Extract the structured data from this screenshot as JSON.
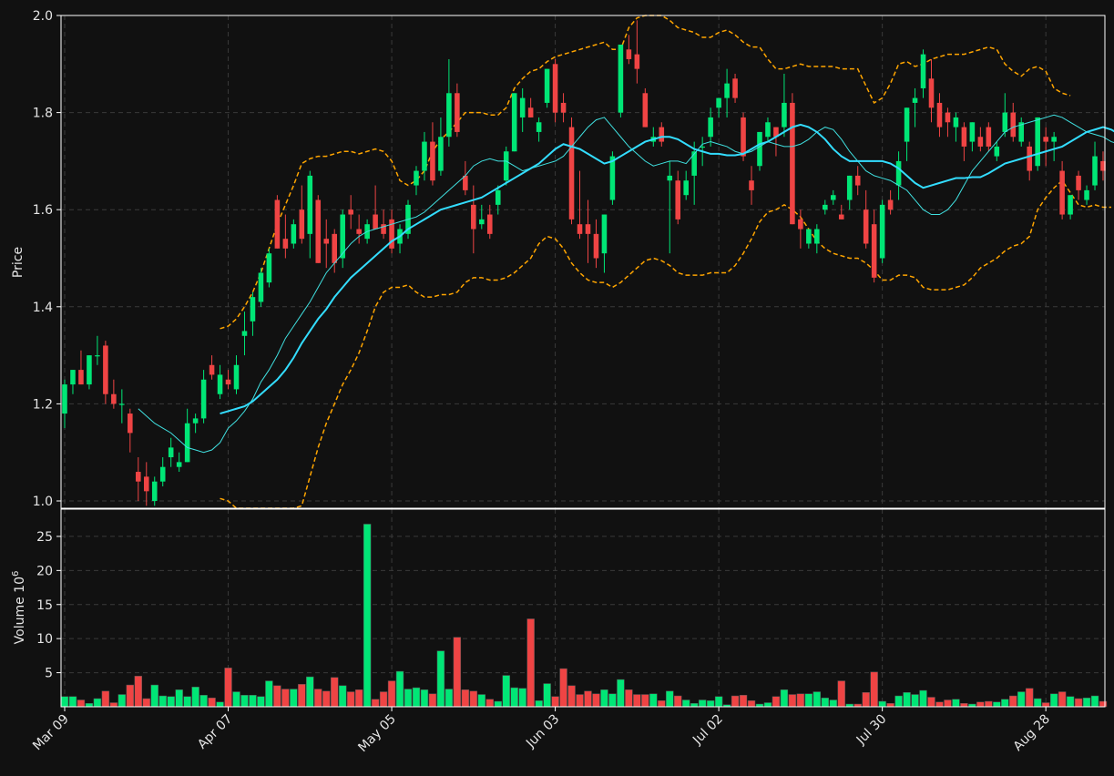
{
  "chart_data": {
    "type": "candlestick",
    "colors": {
      "background": "#111111",
      "up": "#00e676",
      "down": "#ef4444",
      "ma_short": "#40e0e0",
      "ma_long": "#33ddff",
      "bollinger": "#ffa500",
      "grid": "#3a3a3a",
      "axis": "#ffffff"
    },
    "price_panel": {
      "ylabel": "Price",
      "ylim": [
        0.985,
        2.0
      ],
      "yticks": [
        "1.0",
        "1.2",
        "1.4",
        "1.6",
        "1.8",
        "2.0"
      ],
      "grid": true
    },
    "volume_panel": {
      "ylabel": "Volume",
      "ylabel_exponent": "10",
      "ylabel_power": "6",
      "ylim": [
        0,
        29
      ],
      "yticks": [
        "5",
        "10",
        "15",
        "20",
        "25"
      ],
      "grid": true
    },
    "x_tick_labels": [
      {
        "label": "Mar 09",
        "index": 0
      },
      {
        "label": "Apr 07",
        "index": 20
      },
      {
        "label": "May 05",
        "index": 40
      },
      {
        "label": "Jun 03",
        "index": 60
      },
      {
        "label": "Jul 02",
        "index": 80
      },
      {
        "label": "Jul 30",
        "index": 100
      },
      {
        "label": "Aug 28",
        "index": 120
      }
    ],
    "ohlc": [
      [
        1.18,
        1.25,
        1.15,
        1.24
      ],
      [
        1.24,
        1.27,
        1.22,
        1.27
      ],
      [
        1.27,
        1.31,
        1.24,
        1.24
      ],
      [
        1.24,
        1.3,
        1.23,
        1.3
      ],
      [
        1.3,
        1.34,
        1.28,
        1.3
      ],
      [
        1.32,
        1.33,
        1.2,
        1.22
      ],
      [
        1.22,
        1.25,
        1.19,
        1.2
      ],
      [
        1.2,
        1.23,
        1.16,
        1.2
      ],
      [
        1.18,
        1.19,
        1.1,
        1.14
      ],
      [
        1.06,
        1.09,
        1.0,
        1.04
      ],
      [
        1.05,
        1.08,
        0.99,
        1.02
      ],
      [
        1.0,
        1.05,
        0.99,
        1.04
      ],
      [
        1.04,
        1.09,
        1.03,
        1.07
      ],
      [
        1.09,
        1.13,
        1.07,
        1.11
      ],
      [
        1.07,
        1.1,
        1.06,
        1.08
      ],
      [
        1.08,
        1.19,
        1.08,
        1.16
      ],
      [
        1.16,
        1.18,
        1.14,
        1.17
      ],
      [
        1.17,
        1.27,
        1.16,
        1.25
      ],
      [
        1.28,
        1.3,
        1.25,
        1.26
      ],
      [
        1.22,
        1.28,
        1.21,
        1.26
      ],
      [
        1.25,
        1.27,
        1.23,
        1.24
      ],
      [
        1.23,
        1.3,
        1.22,
        1.28
      ],
      [
        1.34,
        1.39,
        1.3,
        1.35
      ],
      [
        1.37,
        1.43,
        1.34,
        1.42
      ],
      [
        1.41,
        1.48,
        1.4,
        1.47
      ],
      [
        1.45,
        1.52,
        1.44,
        1.51
      ],
      [
        1.62,
        1.63,
        1.52,
        1.52
      ],
      [
        1.54,
        1.59,
        1.5,
        1.52
      ],
      [
        1.53,
        1.58,
        1.52,
        1.57
      ],
      [
        1.6,
        1.65,
        1.53,
        1.54
      ],
      [
        1.55,
        1.68,
        1.5,
        1.67
      ],
      [
        1.62,
        1.63,
        1.49,
        1.49
      ],
      [
        1.54,
        1.58,
        1.48,
        1.53
      ],
      [
        1.55,
        1.56,
        1.47,
        1.49
      ],
      [
        1.5,
        1.6,
        1.48,
        1.59
      ],
      [
        1.6,
        1.63,
        1.56,
        1.59
      ],
      [
        1.56,
        1.59,
        1.53,
        1.55
      ],
      [
        1.54,
        1.58,
        1.53,
        1.57
      ],
      [
        1.59,
        1.65,
        1.56,
        1.56
      ],
      [
        1.57,
        1.6,
        1.54,
        1.55
      ],
      [
        1.58,
        1.6,
        1.51,
        1.52
      ],
      [
        1.53,
        1.57,
        1.51,
        1.56
      ],
      [
        1.55,
        1.62,
        1.54,
        1.61
      ],
      [
        1.65,
        1.69,
        1.63,
        1.68
      ],
      [
        1.68,
        1.76,
        1.66,
        1.74
      ],
      [
        1.74,
        1.78,
        1.65,
        1.66
      ],
      [
        1.68,
        1.79,
        1.67,
        1.75
      ],
      [
        1.75,
        1.91,
        1.73,
        1.84
      ],
      [
        1.84,
        1.86,
        1.75,
        1.76
      ],
      [
        1.67,
        1.7,
        1.63,
        1.64
      ],
      [
        1.61,
        1.65,
        1.51,
        1.56
      ],
      [
        1.57,
        1.61,
        1.56,
        1.58
      ],
      [
        1.59,
        1.61,
        1.54,
        1.55
      ],
      [
        1.61,
        1.65,
        1.59,
        1.64
      ],
      [
        1.66,
        1.73,
        1.65,
        1.72
      ],
      [
        1.72,
        1.84,
        1.72,
        1.84
      ],
      [
        1.79,
        1.85,
        1.76,
        1.83
      ],
      [
        1.81,
        1.83,
        1.79,
        1.79
      ],
      [
        1.76,
        1.79,
        1.74,
        1.78
      ],
      [
        1.82,
        1.89,
        1.81,
        1.89
      ],
      [
        1.9,
        1.91,
        1.78,
        1.8
      ],
      [
        1.82,
        1.84,
        1.78,
        1.8
      ],
      [
        1.77,
        1.79,
        1.57,
        1.58
      ],
      [
        1.57,
        1.68,
        1.54,
        1.55
      ],
      [
        1.57,
        1.62,
        1.49,
        1.55
      ],
      [
        1.55,
        1.58,
        1.48,
        1.5
      ],
      [
        1.51,
        1.59,
        1.47,
        1.59
      ],
      [
        1.62,
        1.72,
        1.61,
        1.71
      ],
      [
        1.8,
        1.94,
        1.79,
        1.94
      ],
      [
        1.93,
        1.96,
        1.9,
        1.91
      ],
      [
        1.92,
        1.99,
        1.86,
        1.89
      ],
      [
        1.84,
        1.85,
        1.77,
        1.77
      ],
      [
        1.74,
        1.77,
        1.73,
        1.75
      ],
      [
        1.77,
        1.78,
        1.73,
        1.74
      ],
      [
        1.66,
        1.7,
        1.51,
        1.67
      ],
      [
        1.66,
        1.68,
        1.57,
        1.58
      ],
      [
        1.63,
        1.68,
        1.62,
        1.66
      ],
      [
        1.67,
        1.74,
        1.61,
        1.72
      ],
      [
        1.73,
        1.75,
        1.69,
        1.73
      ],
      [
        1.75,
        1.81,
        1.73,
        1.79
      ],
      [
        1.81,
        1.83,
        1.79,
        1.83
      ],
      [
        1.83,
        1.89,
        1.79,
        1.86
      ],
      [
        1.87,
        1.88,
        1.82,
        1.83
      ],
      [
        1.79,
        1.8,
        1.7,
        1.71
      ],
      [
        1.66,
        1.69,
        1.61,
        1.64
      ],
      [
        1.69,
        1.76,
        1.68,
        1.76
      ],
      [
        1.75,
        1.79,
        1.74,
        1.78
      ],
      [
        1.77,
        1.77,
        1.71,
        1.75
      ],
      [
        1.77,
        1.88,
        1.75,
        1.82
      ],
      [
        1.82,
        1.84,
        1.57,
        1.57
      ],
      [
        1.58,
        1.6,
        1.52,
        1.56
      ],
      [
        1.53,
        1.56,
        1.52,
        1.56
      ],
      [
        1.53,
        1.57,
        1.51,
        1.56
      ],
      [
        1.6,
        1.62,
        1.59,
        1.61
      ],
      [
        1.62,
        1.64,
        1.61,
        1.63
      ],
      [
        1.59,
        1.61,
        1.58,
        1.58
      ],
      [
        1.62,
        1.67,
        1.6,
        1.67
      ],
      [
        1.67,
        1.69,
        1.63,
        1.65
      ],
      [
        1.6,
        1.64,
        1.52,
        1.53
      ],
      [
        1.57,
        1.6,
        1.45,
        1.46
      ],
      [
        1.5,
        1.62,
        1.49,
        1.61
      ],
      [
        1.62,
        1.64,
        1.59,
        1.6
      ],
      [
        1.65,
        1.72,
        1.62,
        1.7
      ],
      [
        1.74,
        1.81,
        1.7,
        1.81
      ],
      [
        1.82,
        1.85,
        1.77,
        1.83
      ],
      [
        1.85,
        1.93,
        1.83,
        1.92
      ],
      [
        1.87,
        1.91,
        1.78,
        1.81
      ],
      [
        1.82,
        1.84,
        1.75,
        1.77
      ],
      [
        1.8,
        1.81,
        1.75,
        1.78
      ],
      [
        1.77,
        1.8,
        1.74,
        1.79
      ],
      [
        1.77,
        1.78,
        1.7,
        1.73
      ],
      [
        1.74,
        1.78,
        1.72,
        1.78
      ],
      [
        1.75,
        1.77,
        1.72,
        1.73
      ],
      [
        1.77,
        1.78,
        1.72,
        1.73
      ],
      [
        1.71,
        1.74,
        1.7,
        1.73
      ],
      [
        1.76,
        1.84,
        1.75,
        1.8
      ],
      [
        1.8,
        1.82,
        1.74,
        1.75
      ],
      [
        1.74,
        1.79,
        1.73,
        1.78
      ],
      [
        1.73,
        1.74,
        1.66,
        1.68
      ],
      [
        1.69,
        1.79,
        1.68,
        1.79
      ],
      [
        1.75,
        1.77,
        1.69,
        1.74
      ],
      [
        1.74,
        1.76,
        1.7,
        1.75
      ],
      [
        1.68,
        1.7,
        1.58,
        1.59
      ],
      [
        1.59,
        1.63,
        1.58,
        1.63
      ],
      [
        1.67,
        1.68,
        1.62,
        1.64
      ],
      [
        1.62,
        1.65,
        1.61,
        1.64
      ],
      [
        1.65,
        1.74,
        1.64,
        1.71
      ],
      [
        1.7,
        1.72,
        1.66,
        1.68
      ]
    ],
    "volume": [
      1.5,
      1.5,
      1.0,
      0.5,
      1.2,
      2.3,
      0.6,
      1.8,
      3.2,
      4.5,
      1.2,
      3.2,
      1.6,
      1.5,
      2.5,
      1.5,
      2.9,
      1.7,
      1.3,
      0.7,
      5.7,
      2.2,
      1.7,
      1.7,
      1.5,
      3.8,
      3.1,
      2.6,
      2.6,
      3.3,
      4.4,
      2.6,
      2.3,
      4.3,
      3.1,
      2.2,
      2.5,
      26.8,
      1.1,
      2.2,
      3.8,
      5.2,
      2.6,
      2.8,
      2.5,
      1.9,
      8.2,
      2.6,
      10.2,
      2.5,
      2.3,
      1.8,
      1.1,
      0.8,
      4.6,
      2.8,
      2.7,
      12.9,
      0.9,
      3.4,
      1.5,
      5.6,
      3.1,
      1.8,
      2.3,
      1.9,
      2.5,
      1.9,
      4.0,
      2.5,
      1.8,
      1.8,
      1.9,
      0.9,
      2.3,
      1.6,
      1.0,
      0.5,
      1.0,
      0.9,
      1.5,
      0.3,
      1.6,
      1.7,
      0.9,
      0.4,
      0.6,
      1.5,
      2.5,
      1.8,
      1.9,
      1.9,
      2.2,
      1.3,
      1.0,
      3.8,
      0.4,
      0.4,
      2.1,
      5.1,
      0.8,
      0.5,
      1.6,
      2.1,
      1.8,
      2.4,
      1.4,
      0.7,
      1.0,
      1.1,
      0.5,
      0.4,
      0.7,
      0.8,
      0.7,
      1.1,
      1.6,
      2.2,
      2.7,
      1.2,
      0.6,
      1.9,
      2.2,
      1.5,
      1.2,
      1.3,
      1.6,
      0.8
    ],
    "ma_short": {
      "start": 9,
      "values": [
        1.19,
        1.175,
        1.16,
        1.15,
        1.14,
        1.125,
        1.11,
        1.105,
        1.1,
        1.105,
        1.12,
        1.15,
        1.165,
        1.185,
        1.21,
        1.245,
        1.27,
        1.3,
        1.335,
        1.36,
        1.385,
        1.41,
        1.44,
        1.47,
        1.49,
        1.51,
        1.53,
        1.545,
        1.555,
        1.56,
        1.565,
        1.57,
        1.575,
        1.58,
        1.585,
        1.595,
        1.61,
        1.625,
        1.64,
        1.655,
        1.67,
        1.69,
        1.7,
        1.705,
        1.7,
        1.7,
        1.69,
        1.68,
        1.685,
        1.69,
        1.695,
        1.7,
        1.71,
        1.73,
        1.75,
        1.77,
        1.785,
        1.79,
        1.77,
        1.75,
        1.73,
        1.715,
        1.7,
        1.69,
        1.695,
        1.7,
        1.7,
        1.695,
        1.715,
        1.735,
        1.74,
        1.735,
        1.73,
        1.72,
        1.715,
        1.72,
        1.73,
        1.74,
        1.735,
        1.73,
        1.73,
        1.735,
        1.745,
        1.76,
        1.77,
        1.765,
        1.745,
        1.72,
        1.7,
        1.68,
        1.67,
        1.665,
        1.66,
        1.65,
        1.64,
        1.62,
        1.6,
        1.59,
        1.59,
        1.6,
        1.62,
        1.65,
        1.68,
        1.7,
        1.72,
        1.74,
        1.76,
        1.77,
        1.775,
        1.78,
        1.785,
        1.79,
        1.795,
        1.79,
        1.78,
        1.77,
        1.76,
        1.755,
        1.75,
        1.74,
        1.735,
        1.73,
        1.73,
        1.72,
        1.71,
        1.7,
        1.695
      ]
    },
    "ma_long": {
      "start": 19,
      "values": [
        1.18,
        1.185,
        1.19,
        1.195,
        1.205,
        1.22,
        1.235,
        1.25,
        1.27,
        1.295,
        1.325,
        1.35,
        1.375,
        1.395,
        1.42,
        1.44,
        1.46,
        1.475,
        1.49,
        1.505,
        1.52,
        1.535,
        1.545,
        1.56,
        1.57,
        1.58,
        1.59,
        1.6,
        1.605,
        1.61,
        1.615,
        1.62,
        1.625,
        1.635,
        1.645,
        1.655,
        1.665,
        1.675,
        1.685,
        1.695,
        1.71,
        1.725,
        1.735,
        1.73,
        1.725,
        1.715,
        1.705,
        1.695,
        1.7,
        1.71,
        1.72,
        1.73,
        1.74,
        1.745,
        1.75,
        1.75,
        1.745,
        1.735,
        1.725,
        1.72,
        1.715,
        1.715,
        1.712,
        1.712,
        1.715,
        1.725,
        1.735,
        1.74,
        1.75,
        1.76,
        1.77,
        1.775,
        1.77,
        1.76,
        1.745,
        1.725,
        1.71,
        1.7,
        1.7,
        1.7,
        1.7,
        1.7,
        1.695,
        1.685,
        1.67,
        1.655,
        1.645,
        1.65,
        1.655,
        1.66,
        1.665,
        1.665,
        1.667,
        1.667,
        1.675,
        1.685,
        1.695,
        1.7,
        1.705,
        1.71,
        1.715,
        1.72,
        1.725,
        1.73,
        1.74,
        1.75,
        1.76,
        1.765,
        1.77,
        1.765,
        1.755,
        1.745,
        1.735,
        1.725,
        1.72,
        1.72
      ]
    },
    "bb_upper": {
      "start": 19,
      "values": [
        1.355,
        1.36,
        1.375,
        1.4,
        1.43,
        1.47,
        1.52,
        1.57,
        1.61,
        1.65,
        1.695,
        1.705,
        1.71,
        1.71,
        1.715,
        1.72,
        1.72,
        1.715,
        1.72,
        1.725,
        1.72,
        1.7,
        1.66,
        1.65,
        1.66,
        1.68,
        1.72,
        1.745,
        1.76,
        1.78,
        1.8,
        1.8,
        1.8,
        1.795,
        1.795,
        1.81,
        1.85,
        1.87,
        1.885,
        1.89,
        1.905,
        1.915,
        1.92,
        1.925,
        1.93,
        1.935,
        1.94,
        1.945,
        1.93,
        1.93,
        1.975,
        1.995,
        2.0,
        2.0,
        2.0,
        1.99,
        1.975,
        1.97,
        1.965,
        1.955,
        1.955,
        1.965,
        1.97,
        1.96,
        1.945,
        1.935,
        1.935,
        1.91,
        1.89,
        1.89,
        1.895,
        1.9,
        1.895,
        1.895,
        1.895,
        1.895,
        1.89,
        1.89,
        1.89,
        1.855,
        1.82,
        1.83,
        1.86,
        1.9,
        1.905,
        1.895,
        1.9,
        1.91,
        1.915,
        1.92,
        1.92,
        1.92,
        1.925,
        1.93,
        1.935,
        1.93,
        1.9,
        1.885,
        1.875,
        1.89,
        1.895,
        1.885,
        1.85,
        1.84,
        1.835
      ]
    },
    "bb_lower": {
      "start": 19,
      "values": [
        1.005,
        1.0,
        0.985,
        0.955,
        0.93,
        0.905,
        0.88,
        0.87,
        0.84,
        0.925,
        0.99,
        1.05,
        1.11,
        1.16,
        1.2,
        1.24,
        1.27,
        1.305,
        1.35,
        1.4,
        1.43,
        1.44,
        1.44,
        1.445,
        1.43,
        1.42,
        1.42,
        1.425,
        1.425,
        1.43,
        1.45,
        1.46,
        1.46,
        1.455,
        1.455,
        1.46,
        1.47,
        1.485,
        1.5,
        1.53,
        1.545,
        1.54,
        1.52,
        1.49,
        1.47,
        1.455,
        1.45,
        1.45,
        1.44,
        1.45,
        1.465,
        1.48,
        1.495,
        1.5,
        1.495,
        1.485,
        1.47,
        1.465,
        1.465,
        1.465,
        1.47,
        1.47,
        1.47,
        1.485,
        1.51,
        1.54,
        1.575,
        1.595,
        1.6,
        1.61,
        1.6,
        1.585,
        1.56,
        1.535,
        1.52,
        1.51,
        1.505,
        1.5,
        1.5,
        1.49,
        1.475,
        1.455,
        1.455,
        1.465,
        1.465,
        1.46,
        1.44,
        1.435,
        1.435,
        1.435,
        1.44,
        1.445,
        1.46,
        1.48,
        1.49,
        1.5,
        1.515,
        1.525,
        1.53,
        1.545,
        1.6,
        1.625,
        1.645,
        1.66,
        1.635,
        1.61,
        1.605,
        1.61,
        1.605,
        1.605
      ]
    }
  }
}
